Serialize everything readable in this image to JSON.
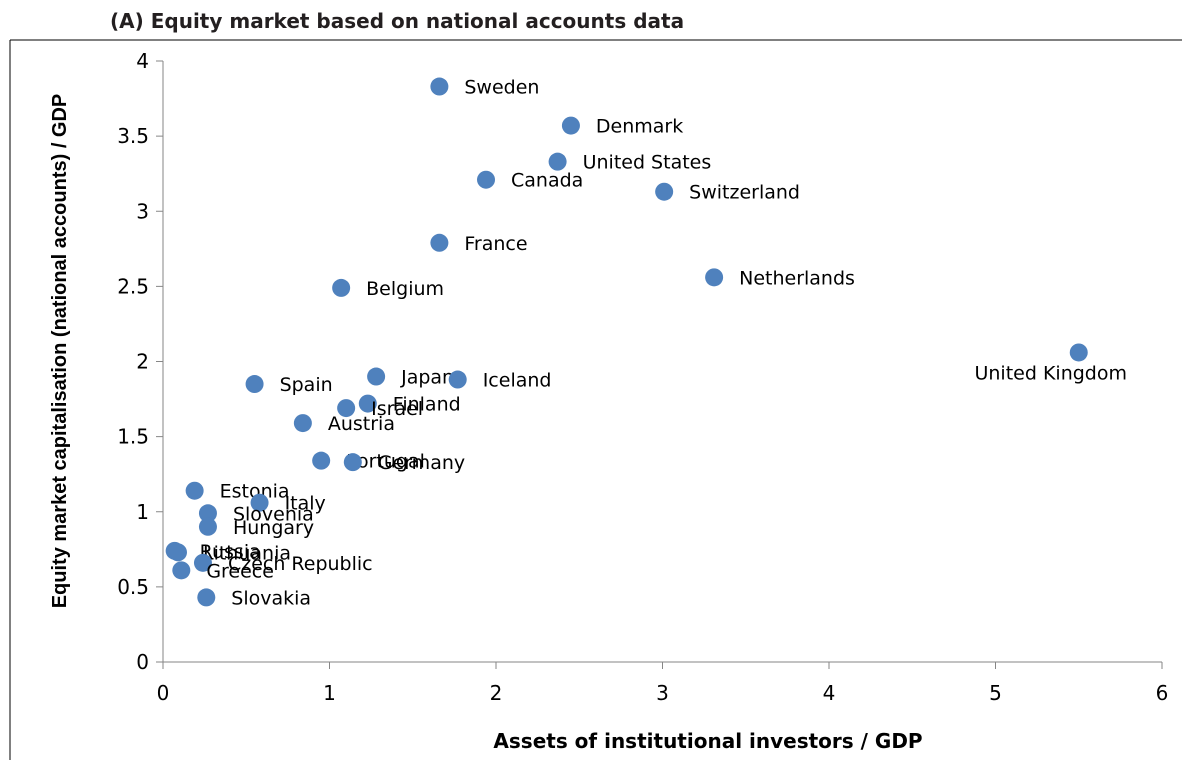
{
  "chart_data": {
    "type": "scatter",
    "title": "(A) Equity market based on national accounts data",
    "x_label": "Assets of institutional investors / GDP",
    "y_label": "Equity market capitalisation (national accounts) / GDP",
    "color": "#4f81bd",
    "xlim": [
      0,
      6
    ],
    "xticks": [
      0,
      1,
      2,
      3,
      4,
      5,
      6
    ],
    "ylim": [
      0,
      4
    ],
    "yticks": [
      0,
      0.5,
      1,
      1.5,
      2,
      2.5,
      3,
      3.5,
      4
    ],
    "grid": false,
    "labels": [
      "Sweden",
      "Denmark",
      "United States",
      "Canada",
      "Switzerland",
      "France",
      "Netherlands",
      "Belgium",
      "United Kingdom",
      "Spain",
      "Japan",
      "Iceland",
      "Finland",
      "Israel",
      "Austria",
      "Portugal",
      "Germany",
      "Estonia",
      "Italy",
      "Slovenia",
      "Hungary",
      "Russia",
      "Lithuania",
      "Czech Republic",
      "Greece",
      "Slovakia"
    ],
    "x": [
      1.66,
      2.45,
      2.37,
      1.94,
      3.01,
      1.66,
      3.31,
      1.07,
      5.5,
      0.55,
      1.28,
      1.77,
      1.23,
      1.1,
      0.84,
      0.95,
      1.14,
      0.19,
      0.58,
      0.27,
      0.27,
      0.07,
      0.09,
      0.24,
      0.11,
      0.26
    ],
    "y": [
      3.83,
      3.57,
      3.33,
      3.21,
      3.13,
      2.79,
      2.56,
      2.49,
      2.06,
      1.85,
      1.9,
      1.88,
      1.72,
      1.69,
      1.59,
      1.34,
      1.33,
      1.14,
      1.06,
      0.99,
      0.9,
      0.74,
      0.73,
      0.66,
      0.61,
      0.43
    ]
  }
}
